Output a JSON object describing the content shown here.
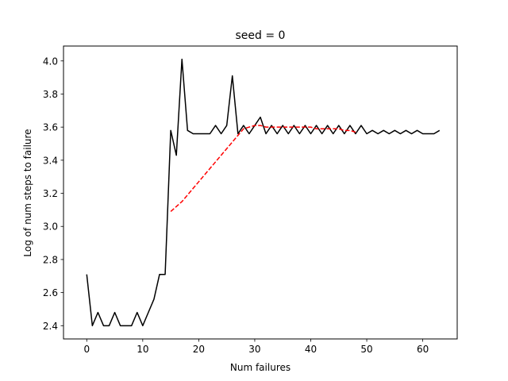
{
  "chart_data": {
    "type": "line",
    "title": "seed = 0",
    "xlabel": "Num failures",
    "ylabel": "Log of num steps to failure",
    "xlim": [
      -4.15,
      66.15
    ],
    "ylim": [
      2.32,
      4.09
    ],
    "x_ticks": [
      0,
      10,
      20,
      30,
      40,
      50,
      60
    ],
    "y_ticks": [
      2.4,
      2.6,
      2.8,
      3.0,
      3.2,
      3.4,
      3.6,
      3.8,
      4.0
    ],
    "x_tick_labels": [
      "0",
      "10",
      "20",
      "30",
      "40",
      "50",
      "60"
    ],
    "y_tick_labels": [
      "2.4",
      "2.6",
      "2.8",
      "3.0",
      "3.2",
      "3.4",
      "3.6",
      "3.8",
      "4.0"
    ],
    "grid": false,
    "series": [
      {
        "color": "#000000",
        "style": "solid",
        "x": [
          0,
          1,
          2,
          3,
          4,
          5,
          6,
          7,
          8,
          9,
          10,
          11,
          12,
          13,
          14,
          15,
          16,
          17,
          18,
          19,
          20,
          21,
          22,
          23,
          24,
          25,
          26,
          27,
          28,
          29,
          30,
          31,
          32,
          33,
          34,
          35,
          36,
          37,
          38,
          39,
          40,
          41,
          42,
          43,
          44,
          45,
          46,
          47,
          48,
          49,
          50,
          51,
          52,
          53,
          54,
          55,
          56,
          57,
          58,
          59,
          60,
          61,
          62,
          63
        ],
        "y": [
          2.71,
          2.4,
          2.48,
          2.4,
          2.4,
          2.48,
          2.4,
          2.4,
          2.4,
          2.48,
          2.4,
          2.48,
          2.56,
          2.71,
          2.71,
          3.58,
          3.43,
          4.01,
          3.58,
          3.56,
          3.56,
          3.56,
          3.56,
          3.61,
          3.56,
          3.61,
          3.91,
          3.56,
          3.61,
          3.56,
          3.61,
          3.66,
          3.56,
          3.61,
          3.56,
          3.61,
          3.56,
          3.61,
          3.56,
          3.61,
          3.56,
          3.61,
          3.56,
          3.61,
          3.56,
          3.61,
          3.56,
          3.61,
          3.56,
          3.61,
          3.56,
          3.58,
          3.56,
          3.58,
          3.56,
          3.58,
          3.56,
          3.58,
          3.56,
          3.58,
          3.56,
          3.56,
          3.56,
          3.58
        ]
      },
      {
        "color": "#ff0000",
        "style": "dashed",
        "x": [
          15,
          16,
          17,
          18,
          19,
          20,
          21,
          22,
          23,
          24,
          25,
          26,
          27,
          28,
          29,
          30,
          31,
          32,
          33,
          34,
          35,
          36,
          37,
          38,
          39,
          40,
          41,
          42,
          43,
          44,
          45,
          46,
          47,
          48
        ],
        "y": [
          3.09,
          3.12,
          3.15,
          3.19,
          3.23,
          3.27,
          3.31,
          3.35,
          3.39,
          3.43,
          3.47,
          3.51,
          3.55,
          3.59,
          3.6,
          3.61,
          3.61,
          3.6,
          3.6,
          3.6,
          3.6,
          3.6,
          3.6,
          3.6,
          3.6,
          3.6,
          3.59,
          3.59,
          3.59,
          3.59,
          3.59,
          3.58,
          3.58,
          3.57
        ]
      }
    ]
  }
}
